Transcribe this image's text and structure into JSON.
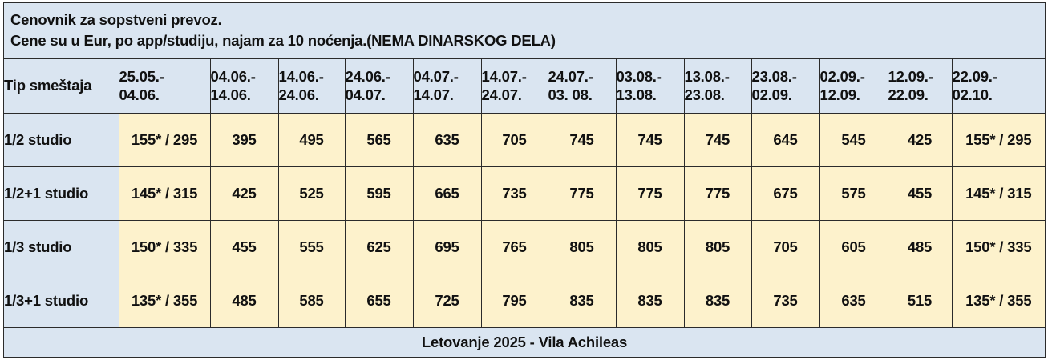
{
  "header": {
    "line1": "Cenovnik za sopstveni prevoz.",
    "line2": "Cene su u Eur, po app/studiju, najam za 10 noćenja.(NEMA DINARSKOG DELA)"
  },
  "table": {
    "type_header": "Tip smeštaja",
    "periods": [
      {
        "from": "25.05.-",
        "to": "04.06."
      },
      {
        "from": "04.06.-",
        "to": "14.06."
      },
      {
        "from": "14.06.-",
        "to": "24.06."
      },
      {
        "from": "24.06.-",
        "to": "04.07."
      },
      {
        "from": "04.07.-",
        "to": "14.07."
      },
      {
        "from": "14.07.-",
        "to": "24.07."
      },
      {
        "from": "24.07.-",
        "to": "03. 08."
      },
      {
        "from": "03.08.-",
        "to": "13.08."
      },
      {
        "from": "13.08.-",
        "to": "23.08."
      },
      {
        "from": "23.08.-",
        "to": "02.09."
      },
      {
        "from": "02.09.-",
        "to": "12.09."
      },
      {
        "from": "12.09.-",
        "to": "22.09."
      },
      {
        "from": "22.09.-",
        "to": "02.10."
      }
    ],
    "rows": [
      {
        "type": "1/2 studio",
        "prices": [
          "155* / 295",
          "395",
          "495",
          "565",
          "635",
          "705",
          "745",
          "745",
          "745",
          "645",
          "545",
          "425",
          "155* / 295"
        ]
      },
      {
        "type": "1/2+1 studio",
        "prices": [
          "145* / 315",
          "425",
          "525",
          "595",
          "665",
          "735",
          "775",
          "775",
          "775",
          "675",
          "575",
          "455",
          "145* / 315"
        ]
      },
      {
        "type": "1/3 studio",
        "prices": [
          "150* / 335",
          "455",
          "555",
          "625",
          "695",
          "765",
          "805",
          "805",
          "805",
          "705",
          "605",
          "485",
          "150* / 335"
        ]
      },
      {
        "type": "1/3+1 studio",
        "prices": [
          "135* / 355",
          "485",
          "585",
          "655",
          "725",
          "795",
          "835",
          "835",
          "835",
          "735",
          "635",
          "515",
          "135* / 355"
        ]
      }
    ]
  },
  "footer": {
    "text": "Letovanje 2025 - Vila Achileas"
  },
  "colors": {
    "header_bg": "#dae5f1",
    "price_bg": "#fdf2cc",
    "footer_text": "#e0201b",
    "border": "#2b2b2b"
  }
}
